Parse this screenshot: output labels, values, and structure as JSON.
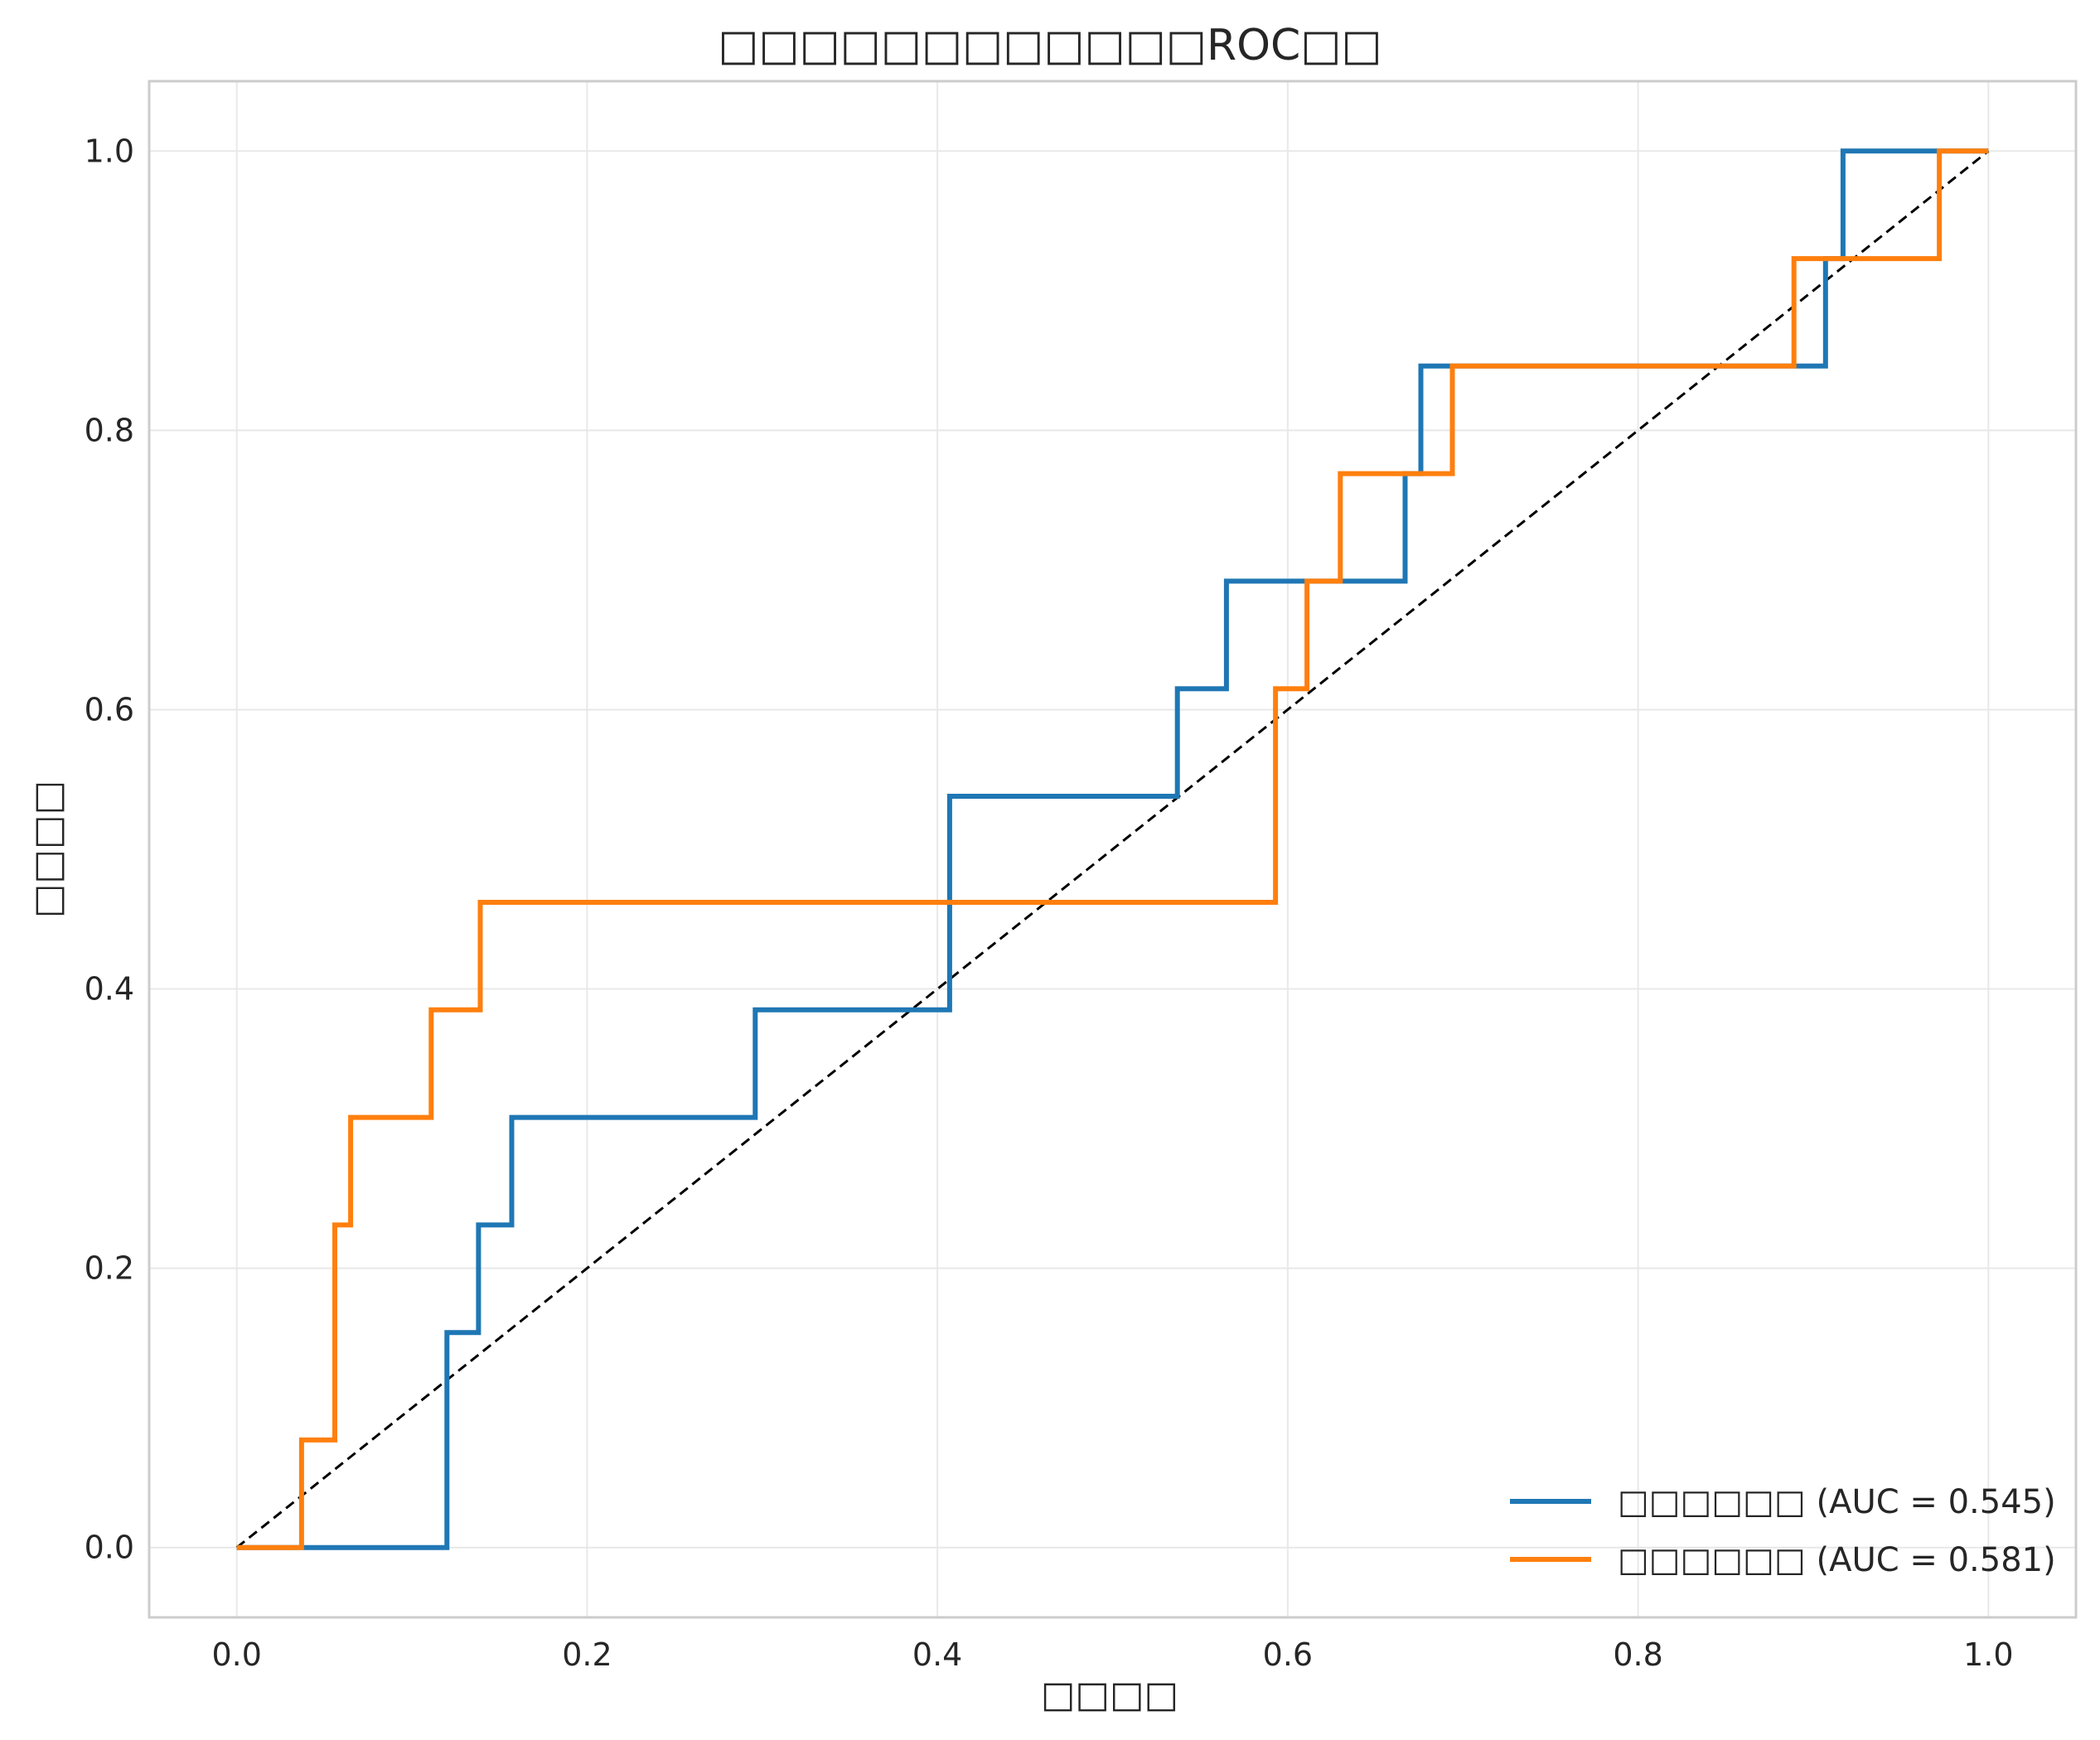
{
  "chart_data": {
    "type": "line",
    "title": "□□□□□□□□□□□□ROC□□",
    "xlabel": "□□□□",
    "ylabel": "□□□□",
    "xlim": [
      -0.05,
      1.05
    ],
    "ylim": [
      -0.05,
      1.05
    ],
    "xticks": [
      0.0,
      0.2,
      0.4,
      0.6,
      0.8,
      1.0
    ],
    "yticks": [
      0.0,
      0.2,
      0.4,
      0.6,
      0.8,
      1.0
    ],
    "xtick_labels": [
      "0.0",
      "0.2",
      "0.4",
      "0.6",
      "0.8",
      "1.0"
    ],
    "ytick_labels": [
      "0.0",
      "0.2",
      "0.4",
      "0.6",
      "0.8",
      "1.0"
    ],
    "grid": true,
    "legend_position": "lower-right",
    "series": [
      {
        "name": "□□□□□□ (AUC = 0.545)",
        "color": "#1f77b4",
        "step": true,
        "x": [
          0.0,
          0.12,
          0.12,
          0.138,
          0.138,
          0.157,
          0.157,
          0.296,
          0.296,
          0.407,
          0.407,
          0.537,
          0.537,
          0.565,
          0.565,
          0.667,
          0.667,
          0.676,
          0.676,
          0.907,
          0.907,
          0.917,
          0.917,
          1.0
        ],
        "y": [
          0.0,
          0.0,
          0.154,
          0.154,
          0.231,
          0.231,
          0.308,
          0.308,
          0.385,
          0.385,
          0.538,
          0.538,
          0.615,
          0.615,
          0.692,
          0.692,
          0.769,
          0.769,
          0.846,
          0.846,
          0.923,
          0.923,
          1.0,
          1.0
        ]
      },
      {
        "name": "□□□□□□ (AUC = 0.581)",
        "color": "#ff7f0e",
        "step": true,
        "x": [
          0.0,
          0.037,
          0.037,
          0.056,
          0.056,
          0.065,
          0.065,
          0.111,
          0.111,
          0.139,
          0.139,
          0.593,
          0.593,
          0.611,
          0.611,
          0.63,
          0.63,
          0.694,
          0.694,
          0.889,
          0.889,
          0.972,
          0.972,
          1.0
        ],
        "y": [
          0.0,
          0.0,
          0.077,
          0.077,
          0.231,
          0.231,
          0.308,
          0.308,
          0.385,
          0.385,
          0.462,
          0.462,
          0.615,
          0.615,
          0.692,
          0.692,
          0.769,
          0.769,
          0.846,
          0.846,
          0.923,
          0.923,
          1.0,
          1.0
        ]
      }
    ],
    "reference_line": {
      "x": [
        0,
        1
      ],
      "y": [
        0,
        1
      ],
      "color": "#000000",
      "style": "dashed"
    }
  }
}
